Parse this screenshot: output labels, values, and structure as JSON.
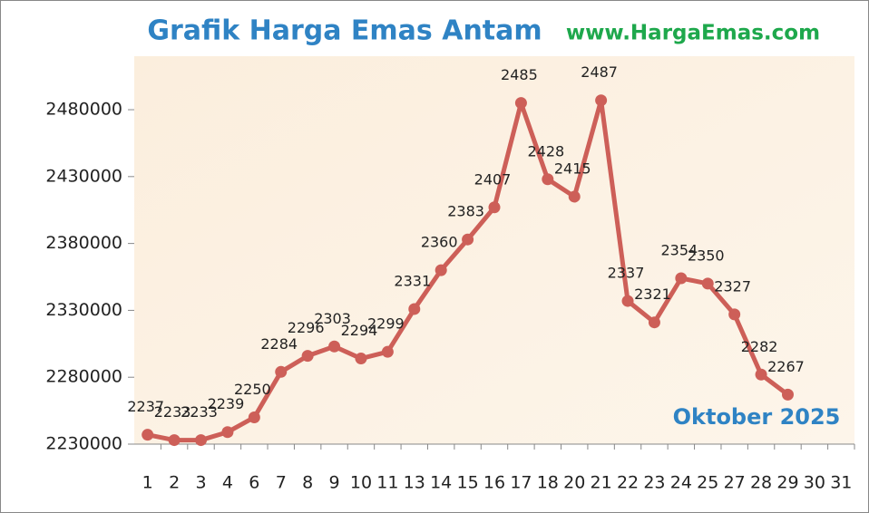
{
  "chart_data": {
    "type": "line",
    "title": "Grafik Harga Emas Antam",
    "subtitle": "www.HargaEmas.com",
    "annotation": "Oktober 2025",
    "categories": [
      "1",
      "2",
      "3",
      "4",
      "6",
      "7",
      "8",
      "9",
      "10",
      "11",
      "13",
      "14",
      "15",
      "16",
      "17",
      "18",
      "20",
      "21",
      "22",
      "23",
      "24",
      "25",
      "27",
      "28",
      "29",
      "30",
      "31"
    ],
    "series": [
      {
        "color": "#cd5f58",
        "values": [
          2237000,
          2233000,
          2233000,
          2239000,
          2250000,
          2284000,
          2296000,
          2303000,
          2294000,
          2299000,
          2331000,
          2360000,
          2383000,
          2407000,
          2485000,
          2428000,
          2415000,
          2487000,
          2337000,
          2321000,
          2354000,
          2350000,
          2327000,
          2282000,
          2267000,
          null,
          null
        ],
        "value_labels": [
          "2237",
          "2233",
          "2233",
          "2239",
          "2250",
          "2284",
          "2296",
          "2303",
          "2294",
          "2299",
          "2331",
          "2360",
          "2383",
          "2407",
          "2485",
          "2428",
          "2415",
          "2487",
          "2337",
          "2321",
          "2354",
          "2350",
          "2327",
          "2282",
          "2267",
          null,
          null
        ]
      }
    ],
    "ylim": [
      2230000,
      2520000
    ],
    "yticks": [
      2230000,
      2280000,
      2330000,
      2380000,
      2430000,
      2480000
    ]
  }
}
